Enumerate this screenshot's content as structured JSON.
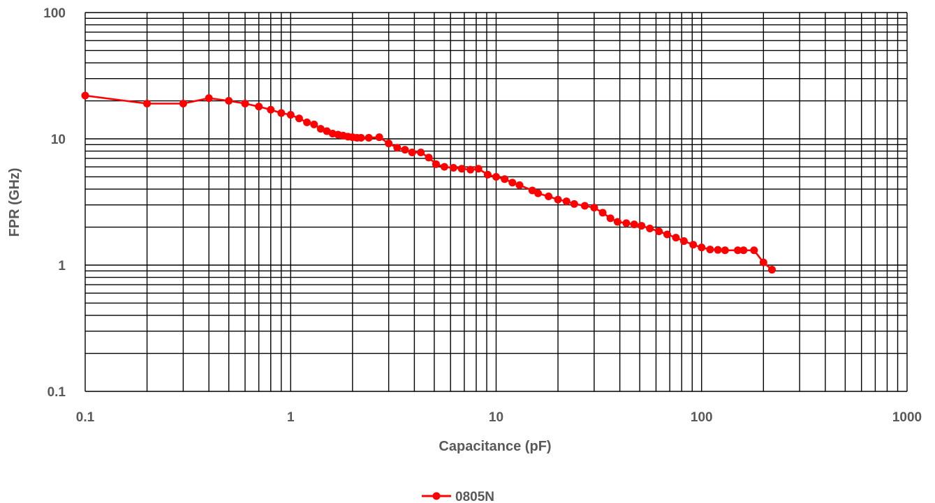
{
  "chart_data": {
    "type": "line",
    "xlabel": "Capacitance (pF)",
    "ylabel": "FPR (GHz)",
    "x_scale": "log",
    "y_scale": "log",
    "xlim": [
      0.1,
      1000
    ],
    "ylim": [
      0.1,
      100
    ],
    "x_tick_labels": [
      "0.1",
      "1",
      "10",
      "100",
      "1000"
    ],
    "y_tick_labels": [
      "0.1",
      "1",
      "10",
      "100"
    ],
    "grid": true,
    "legend_position": "bottom",
    "series": [
      {
        "name": "0805N",
        "color": "#ff0000",
        "x": [
          0.1,
          0.2,
          0.3,
          0.4,
          0.5,
          0.6,
          0.7,
          0.8,
          0.9,
          1.0,
          1.1,
          1.2,
          1.3,
          1.4,
          1.5,
          1.6,
          1.7,
          1.8,
          1.9,
          2.0,
          2.1,
          2.2,
          2.4,
          2.7,
          3.0,
          3.3,
          3.6,
          3.9,
          4.3,
          4.7,
          5.1,
          5.6,
          6.2,
          6.8,
          7.5,
          8.2,
          9.1,
          10,
          11,
          12,
          13,
          15,
          16,
          18,
          20,
          22,
          24,
          27,
          30,
          33,
          36,
          39,
          43,
          47,
          51,
          56,
          62,
          68,
          75,
          82,
          91,
          100,
          110,
          120,
          130,
          150,
          160,
          180,
          200,
          220
        ],
        "y": [
          22,
          19,
          19,
          21,
          20,
          19,
          18,
          17,
          16,
          15.5,
          14.5,
          13.5,
          13,
          12,
          11.5,
          11,
          10.8,
          10.6,
          10.4,
          10.3,
          10.2,
          10.2,
          10.2,
          10.3,
          9.2,
          8.5,
          8.2,
          7.8,
          7.8,
          7.1,
          6.3,
          6.0,
          5.9,
          5.8,
          5.7,
          5.8,
          5.2,
          5.0,
          4.8,
          4.5,
          4.3,
          3.9,
          3.7,
          3.5,
          3.3,
          3.2,
          3.05,
          2.95,
          2.85,
          2.6,
          2.35,
          2.2,
          2.15,
          2.1,
          2.05,
          1.95,
          1.85,
          1.75,
          1.65,
          1.55,
          1.45,
          1.38,
          1.33,
          1.32,
          1.31,
          1.31,
          1.31,
          1.31,
          1.05,
          0.92
        ]
      }
    ]
  }
}
